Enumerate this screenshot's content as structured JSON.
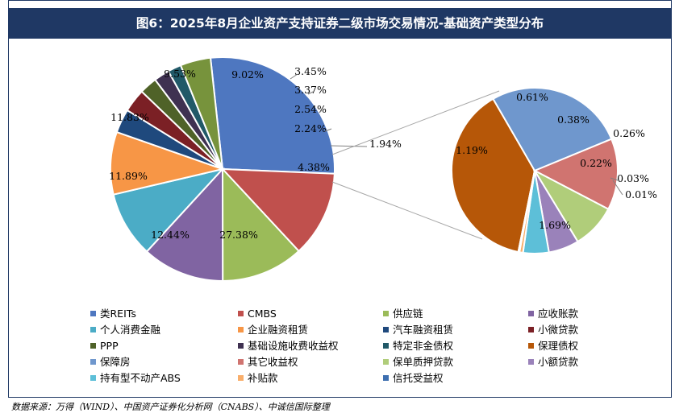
{
  "title": "图6：2025年8月企业资产支持证券二级市场交易情况-基础资产类型分布",
  "source": "数据来源：万得（WIND）、中国资产证券化分析网（CNABS）、中诚信国际整理",
  "chart_data": [
    {
      "type": "pie",
      "slices": [
        {
          "label": "27.38%",
          "value": 27.38,
          "color": "#4e77c0"
        },
        {
          "label": "12.44%",
          "value": 12.44,
          "color": "#c0504d"
        },
        {
          "label": "11.89%",
          "value": 11.89,
          "color": "#9bbb59"
        },
        {
          "label": "11.83%",
          "value": 11.83,
          "color": "#8064a2"
        },
        {
          "label": "9.53%",
          "value": 9.53,
          "color": "#4bacc6"
        },
        {
          "label": "9.02%",
          "value": 9.02,
          "color": "#f79646"
        },
        {
          "label": "3.45%",
          "value": 3.45,
          "color": "#1f497d"
        },
        {
          "label": "3.37%",
          "value": 3.37,
          "color": "#7b2025"
        },
        {
          "label": "2.54%",
          "value": 2.54,
          "color": "#4f6228"
        },
        {
          "label": "2.24%",
          "value": 2.24,
          "color": "#3f3151"
        },
        {
          "label": "1.94%",
          "value": 1.94,
          "color": "#215968"
        },
        {
          "label": "4.38%",
          "value": 4.38,
          "color": "#77933c"
        }
      ]
    },
    {
      "type": "pie",
      "slices": [
        {
          "label": "1.69%",
          "value": 1.69,
          "color": "#b65708"
        },
        {
          "label": "1.19%",
          "value": 1.19,
          "color": "#6f97cd"
        },
        {
          "label": "0.61%",
          "value": 0.61,
          "color": "#d07470"
        },
        {
          "label": "0.38%",
          "value": 0.38,
          "color": "#b0cd7a"
        },
        {
          "label": "0.26%",
          "value": 0.26,
          "color": "#9a82ba"
        },
        {
          "label": "0.22%",
          "value": 0.22,
          "color": "#5dbfd8"
        },
        {
          "label": "0.03%",
          "value": 0.03,
          "color": "#f9ae6b"
        },
        {
          "label": "0.01%",
          "value": 0.01,
          "color": "#3e6fb0"
        }
      ]
    }
  ],
  "legend": [
    {
      "label": "类REITs",
      "color": "#4e77c0"
    },
    {
      "label": "CMBS",
      "color": "#c0504d"
    },
    {
      "label": "供应链",
      "color": "#9bbb59"
    },
    {
      "label": "应收账款",
      "color": "#8064a2"
    },
    {
      "label": "个人消费金融",
      "color": "#4bacc6"
    },
    {
      "label": "企业融资租赁",
      "color": "#f79646"
    },
    {
      "label": "汽车融资租赁",
      "color": "#1f497d"
    },
    {
      "label": "小微贷款",
      "color": "#7b2025"
    },
    {
      "label": "PPP",
      "color": "#4f6228"
    },
    {
      "label": "基础设施收费收益权",
      "color": "#3f3151"
    },
    {
      "label": "特定非金债权",
      "color": "#215968"
    },
    {
      "label": "保理债权",
      "color": "#b65708"
    },
    {
      "label": "保障房",
      "color": "#6f97cd"
    },
    {
      "label": "其它收益权",
      "color": "#d07470"
    },
    {
      "label": "保单质押贷款",
      "color": "#b0cd7a"
    },
    {
      "label": "小额贷款",
      "color": "#9a82ba"
    },
    {
      "label": "持有型不动产ABS",
      "color": "#5dbfd8"
    },
    {
      "label": "补贴款",
      "color": "#f9ae6b"
    },
    {
      "label": "信托受益权",
      "color": "#3e6fb0"
    }
  ]
}
